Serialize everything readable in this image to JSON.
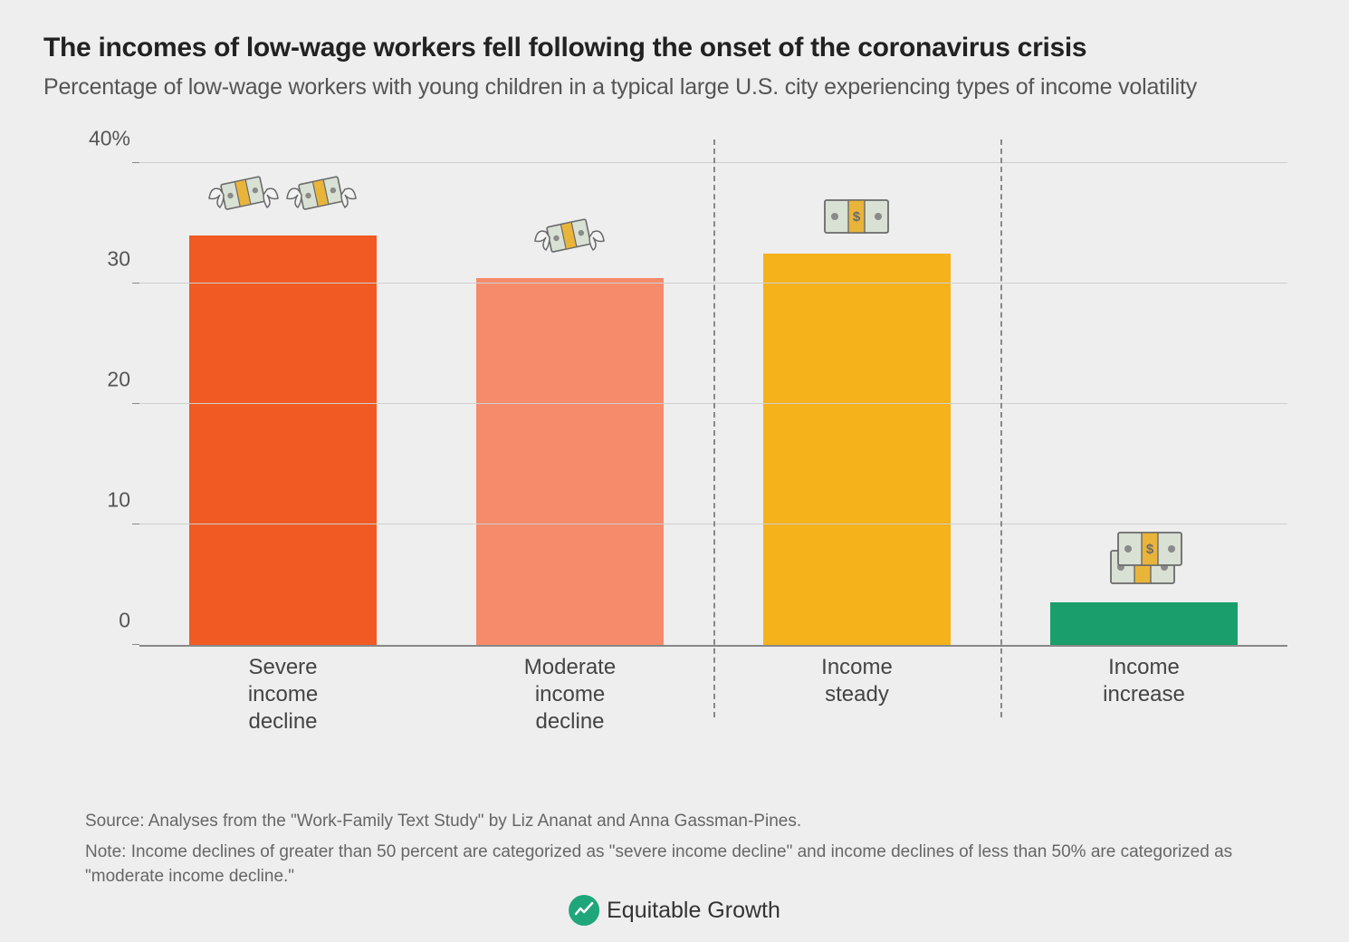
{
  "title": "The incomes of low-wage workers fell following the onset of the coronavirus crisis",
  "subtitle": "Percentage of low-wage workers with young children in a typical large U.S. city experiencing types of income volatility",
  "chart": {
    "type": "bar",
    "ylim": [
      0,
      42
    ],
    "yticks": [
      0,
      10,
      20,
      30,
      40
    ],
    "ytick_labels": [
      "0",
      "10",
      "20",
      "30",
      "40%"
    ],
    "gridlines": [
      10,
      20,
      30,
      40
    ],
    "background_color": "#eeeeee",
    "grid_color": "#cfcfcf",
    "axis_color": "#888888",
    "label_fontsize": 24,
    "tick_fontsize": 23,
    "bar_width_pct": 65,
    "dividers_after_index": [
      1,
      2
    ],
    "categories": [
      {
        "label": "Severe income\ndecline",
        "value": 34,
        "color": "#f15a22",
        "icon": "money-wings",
        "icon_count": 2
      },
      {
        "label": "Moderate\nincome decline",
        "value": 30.5,
        "color": "#f58b6b",
        "icon": "money-wings",
        "icon_count": 1
      },
      {
        "label": "Income\nsteady",
        "value": 32.5,
        "color": "#f6b21b",
        "icon": "money-bill",
        "icon_count": 1
      },
      {
        "label": "Income\nincrease",
        "value": 3.5,
        "color": "#1a9e6b",
        "icon": "money-stack",
        "icon_count": 1
      }
    ]
  },
  "source": "Source: Analyses from the \"Work-Family Text Study\" by Liz Ananat and Anna Gassman-Pines.",
  "note": "Note: Income declines of greater than 50 percent are categorized as \"severe income decline\" and income declines of less than 50% are categorized as \"moderate income decline.\"",
  "footer_brand": "Equitable Growth"
}
